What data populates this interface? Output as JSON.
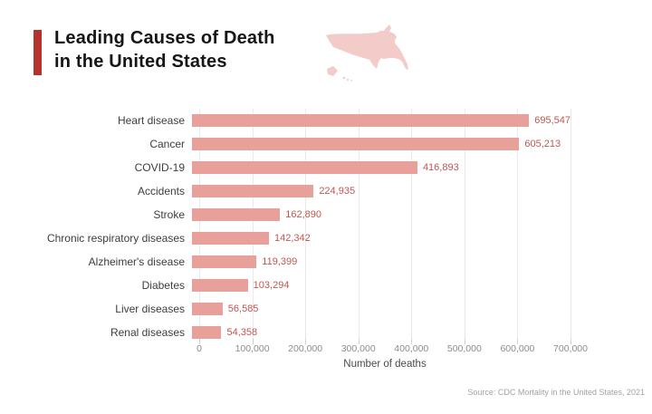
{
  "header": {
    "title_line1": "Leading Causes of Death",
    "title_line2": "in the United States"
  },
  "chart_data": {
    "type": "bar",
    "orientation": "horizontal",
    "title": "Leading Causes of Death in the United States",
    "categories": [
      "Heart disease",
      "Cancer",
      "COVID-19",
      "Accidents",
      "Stroke",
      "Chronic respiratory diseases",
      "Alzheimer's disease",
      "Diabetes",
      "Liver diseases",
      "Renal diseases"
    ],
    "values": [
      695547,
      605213,
      416893,
      224935,
      162890,
      142342,
      119399,
      103294,
      56585,
      54358
    ],
    "value_labels": [
      "695,547",
      "605,213",
      "416,893",
      "224,935",
      "162,890",
      "142,342",
      "119,399",
      "103,294",
      "56,585",
      "54,358"
    ],
    "xlabel": "Number of deaths",
    "ylabel": "",
    "xlim": [
      0,
      700000
    ],
    "x_ticks": [
      0,
      100000,
      200000,
      300000,
      400000,
      500000,
      600000,
      700000
    ],
    "x_tick_labels": [
      "0",
      "100,000",
      "200,000",
      "300,000",
      "400,000",
      "500,000",
      "600,000",
      "700,000"
    ],
    "grid": "vertical",
    "legend": "none"
  },
  "footer": {
    "source": "Source: CDC Mortality in the United States, 2021"
  },
  "colors": {
    "accent": "#b5332e",
    "bar": "#e8a09a",
    "value_label": "#c25750",
    "map": "#f3cbc8"
  }
}
